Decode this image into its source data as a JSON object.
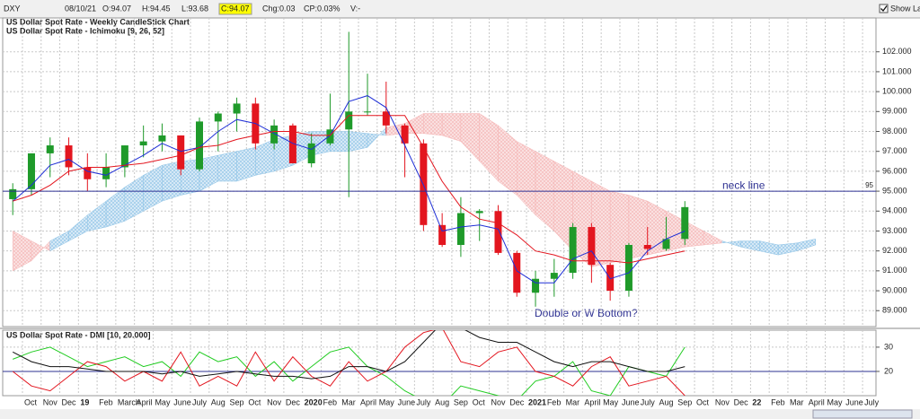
{
  "toolbar": {
    "fields": [
      "DXY",
      "08/10/21",
      "O:94.07",
      "H:94.45",
      "L:93.68",
      "C:94.07",
      "Chg:0.03",
      "CP:0.03%",
      "V:-"
    ],
    "show_last": "Show Last"
  },
  "chart_data": {
    "type": "candlestick",
    "title": "US Dollar Spot Rate - Weekly CandleStick Chart",
    "subtitle": "US Dollar Spot Rate - Ichimoku [9, 26, 52]",
    "categories": [
      null,
      "Oct",
      "Nov",
      "Dec",
      "19",
      "Feb",
      "March",
      "April",
      "May",
      "June",
      "July",
      "Aug",
      "Sep",
      "Oct",
      "Nov",
      "Dec",
      "2020",
      "Feb",
      "Mar",
      "April",
      "May",
      "June",
      "July",
      "Aug",
      "Sep",
      "Oct",
      "Nov",
      "Dec",
      "2021",
      "Feb",
      "Mar",
      "April",
      "May",
      "June",
      "July",
      "Aug",
      "Sep",
      "Oct",
      "Nov",
      "Dec",
      "22",
      "Feb",
      "Mar",
      "April",
      "May",
      "June",
      "July"
    ],
    "open": [
      94.6,
      95.1,
      96.9,
      97.3,
      96.2,
      95.6,
      96.2,
      97.3,
      97.5,
      97.8,
      96.1,
      98.5,
      98.9,
      99.4,
      97.4,
      98.3,
      96.4,
      97.4,
      98.1,
      99.0,
      99.0,
      98.3,
      97.4,
      93.3,
      92.3,
      93.9,
      94.0,
      91.9,
      89.9,
      90.6,
      90.9,
      93.2,
      91.3,
      90.0,
      92.3,
      92.1,
      92.6,
      null,
      null,
      null,
      null,
      null,
      null,
      null,
      null,
      null,
      null
    ],
    "high": [
      95.4,
      96.9,
      97.7,
      97.7,
      96.9,
      96.9,
      97.3,
      98.3,
      98.4,
      97.8,
      98.7,
      99.0,
      99.7,
      99.7,
      98.6,
      98.4,
      97.9,
      99.9,
      103.0,
      100.9,
      100.5,
      98.4,
      97.6,
      93.9,
      94.7,
      94.1,
      94.3,
      92.0,
      91.0,
      91.6,
      93.4,
      93.4,
      91.4,
      92.4,
      93.2,
      93.7,
      94.5,
      null,
      null,
      null,
      null,
      null,
      null,
      null,
      null,
      null,
      null
    ],
    "low": [
      93.8,
      94.8,
      95.7,
      95.8,
      95.0,
      95.2,
      95.7,
      96.7,
      97.0,
      95.8,
      96.0,
      97.0,
      98.0,
      97.1,
      97.1,
      96.4,
      96.2,
      97.3,
      94.7,
      98.8,
      97.9,
      95.7,
      93.0,
      92.2,
      91.7,
      92.5,
      91.8,
      89.7,
      89.2,
      89.7,
      90.6,
      90.4,
      89.5,
      89.7,
      91.8,
      92.0,
      92.3,
      null,
      null,
      null,
      null,
      null,
      null,
      null,
      null,
      null,
      null
    ],
    "close": [
      95.1,
      96.9,
      97.3,
      96.2,
      95.6,
      96.2,
      97.3,
      97.5,
      97.8,
      96.1,
      98.5,
      98.9,
      99.4,
      97.4,
      98.3,
      96.4,
      97.4,
      98.1,
      99.0,
      99.0,
      98.3,
      97.4,
      93.3,
      92.3,
      93.9,
      94.0,
      91.9,
      89.9,
      90.6,
      90.9,
      93.2,
      91.3,
      90.0,
      92.3,
      92.1,
      92.6,
      94.2,
      null,
      null,
      null,
      null,
      null,
      null,
      null,
      null,
      null,
      null
    ],
    "up_color": "#1f9a2a",
    "down_color": "#e3161f",
    "ylim": [
      88.2,
      103.7
    ],
    "yticks": [
      {
        "value": 89,
        "label": "89.000"
      },
      {
        "value": 90,
        "label": "90.000"
      },
      {
        "value": 91,
        "label": "91.000"
      },
      {
        "value": 92,
        "label": "92.000"
      },
      {
        "value": 93,
        "label": "93.000"
      },
      {
        "value": 94,
        "label": "94.000"
      },
      {
        "value": 95,
        "label": "95.000"
      },
      {
        "value": 96,
        "label": "96.000"
      },
      {
        "value": 97,
        "label": "97.000"
      },
      {
        "value": 98,
        "label": "98.000"
      },
      {
        "value": 99,
        "label": "99.000"
      },
      {
        "value": 100,
        "label": "100.000"
      },
      {
        "value": 101,
        "label": "101.000"
      },
      {
        "value": 102,
        "label": "102.000"
      }
    ],
    "grid": true,
    "lines": [
      {
        "color": "#1f2fd6",
        "values": [
          94.5,
          95.3,
          96.3,
          96.6,
          96.0,
          95.8,
          96.3,
          96.8,
          97.4,
          97.0,
          97.2,
          98.0,
          98.6,
          98.4,
          97.9,
          97.4,
          97.1,
          97.8,
          99.5,
          99.8,
          99.2,
          97.3,
          95.3,
          93.0,
          93.2,
          93.3,
          93.1,
          91.0,
          90.4,
          90.4,
          91.6,
          92.0,
          90.6,
          90.9,
          92.0,
          92.6,
          93.0,
          null,
          null,
          null,
          null,
          null,
          null,
          null,
          null,
          null,
          null
        ]
      },
      {
        "color": "#e3161f",
        "values": [
          94.5,
          94.8,
          95.3,
          96.0,
          96.2,
          96.2,
          96.3,
          96.4,
          96.6,
          96.8,
          97.2,
          97.3,
          97.6,
          97.8,
          98.0,
          98.0,
          97.8,
          97.8,
          98.8,
          98.8,
          98.8,
          98.8,
          97.2,
          95.5,
          94.2,
          93.6,
          93.4,
          92.8,
          92.0,
          91.8,
          91.5,
          91.5,
          91.5,
          91.4,
          91.6,
          91.8,
          92.0,
          null,
          null,
          null,
          null,
          null,
          null,
          null,
          null,
          null,
          null
        ]
      }
    ],
    "cloud": {
      "bull_color": "#8ec3e6",
      "bear_color": "#f4b4b4",
      "span_a": [
        91.0,
        91.5,
        92.5,
        93.0,
        93.8,
        94.5,
        95.2,
        95.8,
        96.3,
        96.5,
        96.6,
        96.8,
        97.0,
        97.2,
        97.6,
        97.8,
        98.0,
        98.0,
        98.0,
        97.9,
        97.8,
        97.9,
        97.9,
        97.8,
        97.5,
        96.5,
        95.5,
        94.8,
        93.8,
        93.0,
        92.0,
        91.2,
        91.4,
        91.6,
        91.8,
        92.0,
        92.2,
        92.3,
        92.4,
        92.5,
        92.5,
        92.3,
        92.4,
        92.6,
        null,
        null,
        null
      ],
      "span_b": [
        93.0,
        92.5,
        92.0,
        92.5,
        93.0,
        93.2,
        93.5,
        94.0,
        94.5,
        94.8,
        95.0,
        95.5,
        95.5,
        95.8,
        96.0,
        96.3,
        96.8,
        97.0,
        97.0,
        97.2,
        98.2,
        98.4,
        98.9,
        98.9,
        98.9,
        98.9,
        98.3,
        97.5,
        97.0,
        96.5,
        96.0,
        95.5,
        95.0,
        94.8,
        94.5,
        94.0,
        93.5,
        93.0,
        92.5,
        92.2,
        92.0,
        91.8,
        92.0,
        92.3,
        null,
        null,
        null
      ]
    },
    "reference_line": {
      "value": 95,
      "label": "neck line",
      "color": "#2e3192"
    },
    "annotation": "Double or W Bottom?",
    "indicator": {
      "type": "line",
      "title": "US Dollar Spot Rate - DMI [10, 20.000]",
      "ylim": [
        10,
        37
      ],
      "yticks": [
        20,
        30
      ],
      "level": 20,
      "level_color": "#2e3192",
      "series": [
        {
          "color": "#22cc22",
          "values": [
            25,
            28,
            30,
            26,
            22,
            24,
            26,
            22,
            24,
            18,
            28,
            24,
            26,
            18,
            24,
            16,
            22,
            28,
            30,
            22,
            18,
            12,
            8,
            6,
            14,
            12,
            10,
            8,
            16,
            18,
            24,
            12,
            10,
            22,
            20,
            18,
            30,
            null,
            null,
            null,
            null,
            null,
            null,
            null,
            null,
            null,
            null
          ]
        },
        {
          "color": "#e3161f",
          "values": [
            20,
            14,
            12,
            18,
            24,
            22,
            16,
            20,
            16,
            28,
            14,
            18,
            14,
            28,
            16,
            26,
            18,
            14,
            24,
            16,
            20,
            30,
            36,
            38,
            24,
            22,
            28,
            30,
            20,
            18,
            14,
            22,
            26,
            14,
            16,
            18,
            10,
            null,
            null,
            null,
            null,
            null,
            null,
            null,
            null,
            null,
            null
          ]
        },
        {
          "color": "#111111",
          "values": [
            28,
            24,
            22,
            22,
            21,
            20,
            20,
            20,
            19,
            20,
            18,
            19,
            20,
            19,
            18,
            18,
            17,
            18,
            22,
            22,
            20,
            24,
            32,
            40,
            38,
            34,
            32,
            32,
            28,
            24,
            22,
            24,
            24,
            22,
            20,
            20,
            22,
            null,
            null,
            null,
            null,
            null,
            null,
            null,
            null,
            null,
            null
          ]
        }
      ]
    }
  }
}
